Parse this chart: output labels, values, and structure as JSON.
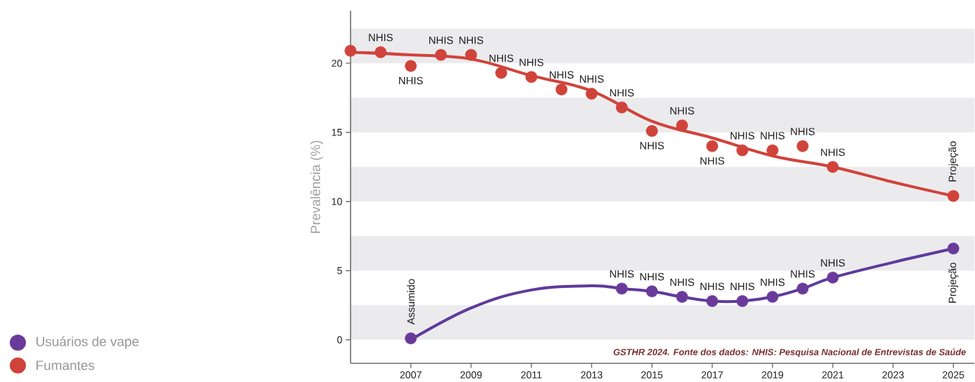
{
  "chart_data": {
    "type": "scatter",
    "ylabel": "Prevalência (%)",
    "xlim": [
      2005,
      2025.7
    ],
    "ylim": [
      -1.7,
      23.8
    ],
    "xticks": [
      2007,
      2009,
      2011,
      2013,
      2015,
      2017,
      2019,
      2021,
      2023,
      2025
    ],
    "yticks": [
      0,
      5,
      10,
      15,
      20
    ],
    "grid": false,
    "legend": "bottom left",
    "bands": [
      {
        "axis": "y",
        "from": 0,
        "to": 2.5,
        "color": "#ebebee"
      },
      {
        "axis": "y",
        "from": 5,
        "to": 7.5,
        "color": "#ebebee"
      },
      {
        "axis": "y",
        "from": 10,
        "to": 12.5,
        "color": "#ebebee"
      },
      {
        "axis": "y",
        "from": 15,
        "to": 17.5,
        "color": "#ebebee"
      },
      {
        "axis": "y",
        "from": 20,
        "to": 22.5,
        "color": "#ebebee"
      }
    ],
    "annotations": [
      "GSTHR 2024. Fonte dos dados: NHIS: Pesquisa Nacional de Entrevistas de Saúde"
    ],
    "series": [
      {
        "type": "line",
        "color": "#5e3a9c",
        "marker": "none",
        "line_style": "solid",
        "x": [
          2007,
          2009,
          2011,
          2013,
          2014,
          2015,
          2016,
          2017,
          2018,
          2019,
          2020,
          2021,
          2023,
          2025
        ],
        "values": [
          0,
          2.3,
          3.6,
          3.9,
          3.7,
          3.5,
          3.1,
          2.8,
          2.8,
          3.1,
          3.7,
          4.5,
          5.6,
          6.6
        ]
      },
      {
        "type": "line",
        "color": "#d0433a",
        "marker": "none",
        "line_style": "solid",
        "x": [
          2005,
          2007,
          2009,
          2011,
          2013,
          2015,
          2017,
          2019,
          2021,
          2023,
          2025
        ],
        "values": [
          20.8,
          20.6,
          20.3,
          19.1,
          18.0,
          15.8,
          14.6,
          13.3,
          12.5,
          11.4,
          10.4
        ]
      },
      {
        "name": "Usuários de vape",
        "color": "#6a3a9a",
        "marker": "circle",
        "x": [
          2007,
          2014,
          2015,
          2016,
          2017,
          2018,
          2019,
          2020,
          2021,
          2025
        ],
        "values": [
          0.1,
          3.7,
          3.5,
          3.1,
          2.8,
          2.8,
          3.1,
          3.7,
          4.5,
          6.6
        ],
        "value_labels": [
          "Assumido",
          "NHIS",
          "NHIS",
          "NHIS",
          "NHIS",
          "NHIS",
          "NHIS",
          "NHIS",
          "NHIS",
          "Projeção"
        ]
      },
      {
        "name": "Fumantes",
        "color": "#d0433a",
        "marker": "circle",
        "x": [
          2005,
          2006,
          2007,
          2008,
          2009,
          2010,
          2011,
          2012,
          2013,
          2014,
          2015,
          2016,
          2017,
          2018,
          2019,
          2020,
          2021,
          2025
        ],
        "values": [
          20.9,
          20.8,
          19.8,
          20.6,
          20.6,
          19.3,
          19.0,
          18.1,
          17.8,
          16.8,
          15.1,
          15.5,
          14.0,
          13.7,
          13.7,
          14.0,
          12.5,
          10.4
        ],
        "value_labels": [
          null,
          "NHIS",
          "NHIS",
          "NHIS",
          "NHIS",
          "NHIS",
          "NHIS",
          "NHIS",
          "NHIS",
          "NHIS",
          "NHIS",
          "NHIS",
          "NHIS",
          "NHIS",
          "NHIS",
          "NHIS",
          "NHIS",
          "Projeção"
        ]
      }
    ]
  }
}
